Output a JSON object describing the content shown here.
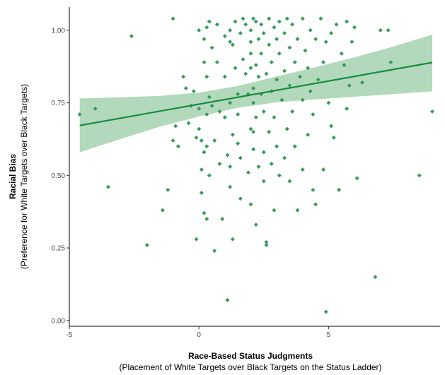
{
  "chart_data": {
    "type": "scatter",
    "title": "",
    "xlabel": "Race-Based Status Judgments",
    "xlabel_sub": "(Placement of White Targets over Black Targets on the Status Ladder)",
    "ylabel": "Racial Bias",
    "ylabel_sub": "(Preference for White Targets over Black Targets)",
    "xlim": [
      -5,
      9.3
    ],
    "ylim": [
      -0.02,
      1.08
    ],
    "x_ticks": [
      -5,
      0,
      5
    ],
    "x_tick_labels": [
      "-5",
      "0",
      "5"
    ],
    "y_ticks": [
      0,
      0.25,
      0.5,
      0.75,
      1.0
    ],
    "y_tick_labels": [
      "0.00",
      "0.25",
      "0.50",
      "0.75",
      "1.00"
    ],
    "grid": false,
    "point_color": "#3a9a5b",
    "line_color": "#1b8a3f",
    "band_color": "#7fbf8f",
    "points": [
      [
        -4.6,
        0.71
      ],
      [
        -4.0,
        0.73
      ],
      [
        -3.5,
        0.46
      ],
      [
        -2.6,
        0.98
      ],
      [
        -2.0,
        0.26
      ],
      [
        -1.4,
        0.38
      ],
      [
        -1.2,
        0.45
      ],
      [
        -1.0,
        0.62
      ],
      [
        -1.0,
        1.04
      ],
      [
        -0.9,
        0.67
      ],
      [
        -0.8,
        0.6
      ],
      [
        -0.6,
        0.84
      ],
      [
        -0.5,
        0.8
      ],
      [
        -0.4,
        0.68
      ],
      [
        -0.3,
        0.74
      ],
      [
        -0.2,
        0.79
      ],
      [
        -0.1,
        0.63
      ],
      [
        -0.1,
        0.28
      ],
      [
        0.0,
        1.0
      ],
      [
        0.0,
        0.73
      ],
      [
        0.0,
        0.66
      ],
      [
        0.1,
        0.62
      ],
      [
        0.1,
        0.52
      ],
      [
        0.1,
        0.44
      ],
      [
        0.2,
        0.97
      ],
      [
        0.2,
        0.89
      ],
      [
        0.2,
        0.58
      ],
      [
        0.2,
        0.37
      ],
      [
        0.3,
        1.01
      ],
      [
        0.3,
        0.84
      ],
      [
        0.3,
        0.71
      ],
      [
        0.3,
        0.6
      ],
      [
        0.3,
        0.35
      ],
      [
        0.4,
        1.03
      ],
      [
        0.4,
        0.77
      ],
      [
        0.4,
        0.5
      ],
      [
        0.5,
        0.94
      ],
      [
        0.5,
        0.74
      ],
      [
        0.6,
        0.62
      ],
      [
        0.6,
        0.24
      ],
      [
        0.7,
        1.02
      ],
      [
        0.7,
        0.89
      ],
      [
        0.8,
        0.72
      ],
      [
        0.8,
        0.54
      ],
      [
        0.9,
        0.35
      ],
      [
        1.0,
        0.98
      ],
      [
        1.0,
        0.84
      ],
      [
        1.0,
        0.7
      ],
      [
        1.1,
        0.57
      ],
      [
        1.1,
        0.07
      ],
      [
        1.2,
        1.0
      ],
      [
        1.2,
        0.96
      ],
      [
        1.2,
        0.75
      ],
      [
        1.2,
        0.53
      ],
      [
        1.2,
        0.46
      ],
      [
        1.3,
        0.95
      ],
      [
        1.3,
        0.64
      ],
      [
        1.3,
        0.28
      ],
      [
        1.4,
        1.03
      ],
      [
        1.4,
        0.87
      ],
      [
        1.5,
        0.78
      ],
      [
        1.5,
        0.71
      ],
      [
        1.5,
        0.61
      ],
      [
        1.6,
        0.99
      ],
      [
        1.6,
        0.56
      ],
      [
        1.6,
        0.42
      ],
      [
        1.7,
        1.04
      ],
      [
        1.7,
        0.9
      ],
      [
        1.8,
        1.02
      ],
      [
        1.8,
        0.85
      ],
      [
        1.9,
        0.78
      ],
      [
        1.9,
        0.51
      ],
      [
        2.0,
        1.0
      ],
      [
        2.0,
        0.96
      ],
      [
        2.0,
        0.92
      ],
      [
        2.0,
        0.87
      ],
      [
        2.0,
        0.66
      ],
      [
        2.0,
        0.4
      ],
      [
        2.1,
        1.04
      ],
      [
        2.1,
        0.8
      ],
      [
        2.1,
        0.75
      ],
      [
        2.1,
        0.65
      ],
      [
        2.1,
        0.59
      ],
      [
        2.2,
        1.03
      ],
      [
        2.2,
        0.88
      ],
      [
        2.2,
        0.7
      ],
      [
        2.2,
        0.33
      ],
      [
        2.3,
        0.97
      ],
      [
        2.3,
        0.84
      ],
      [
        2.3,
        0.53
      ],
      [
        2.4,
        1.02
      ],
      [
        2.4,
        0.92
      ],
      [
        2.4,
        0.78
      ],
      [
        2.5,
        0.99
      ],
      [
        2.5,
        0.72
      ],
      [
        2.5,
        0.58
      ],
      [
        2.5,
        0.48
      ],
      [
        2.6,
        0.85
      ],
      [
        2.6,
        0.27
      ],
      [
        2.6,
        0.26
      ],
      [
        2.7,
        1.04
      ],
      [
        2.7,
        0.95
      ],
      [
        2.7,
        0.65
      ],
      [
        2.8,
        0.89
      ],
      [
        2.8,
        0.79
      ],
      [
        2.8,
        0.54
      ],
      [
        2.9,
        1.01
      ],
      [
        2.9,
        0.7
      ],
      [
        2.9,
        0.38
      ],
      [
        3.0,
        0.97
      ],
      [
        3.0,
        0.83
      ],
      [
        3.0,
        0.6
      ],
      [
        3.1,
        1.03
      ],
      [
        3.1,
        0.92
      ],
      [
        3.1,
        0.5
      ],
      [
        3.2,
        0.76
      ],
      [
        3.3,
        0.99
      ],
      [
        3.3,
        0.86
      ],
      [
        3.3,
        0.56
      ],
      [
        3.4,
        1.04
      ],
      [
        3.4,
        0.66
      ],
      [
        3.5,
        0.94
      ],
      [
        3.5,
        0.81
      ],
      [
        3.5,
        0.48
      ],
      [
        3.6,
        1.02
      ],
      [
        3.6,
        0.72
      ],
      [
        3.7,
        0.89
      ],
      [
        3.7,
        0.6
      ],
      [
        3.8,
        0.97
      ],
      [
        3.8,
        0.38
      ],
      [
        3.9,
        0.84
      ],
      [
        4.0,
        1.04
      ],
      [
        4.0,
        0.76
      ],
      [
        4.0,
        0.52
      ],
      [
        4.1,
        0.93
      ],
      [
        4.2,
        0.87
      ],
      [
        4.2,
        0.64
      ],
      [
        4.3,
        1.0
      ],
      [
        4.3,
        0.79
      ],
      [
        4.4,
        0.71
      ],
      [
        4.4,
        0.45
      ],
      [
        4.5,
        0.97
      ],
      [
        4.5,
        0.4
      ],
      [
        4.6,
        0.83
      ],
      [
        4.7,
        1.04
      ],
      [
        4.8,
        0.89
      ],
      [
        4.8,
        0.52
      ],
      [
        4.9,
        0.96
      ],
      [
        4.9,
        0.03
      ],
      [
        5.0,
        0.75
      ],
      [
        5.1,
        0.99
      ],
      [
        5.1,
        0.67
      ],
      [
        5.2,
        0.63
      ],
      [
        5.3,
        1.02
      ],
      [
        5.4,
        0.45
      ],
      [
        5.5,
        0.92
      ],
      [
        5.6,
        0.88
      ],
      [
        5.7,
        1.03
      ],
      [
        5.7,
        0.73
      ],
      [
        5.8,
        0.81
      ],
      [
        5.9,
        0.96
      ],
      [
        6.0,
        1.01
      ],
      [
        6.1,
        0.49
      ],
      [
        6.3,
        0.82
      ],
      [
        6.8,
        0.15
      ],
      [
        7.0,
        1.0
      ],
      [
        7.3,
        1.0
      ],
      [
        7.4,
        0.89
      ],
      [
        8.5,
        0.5
      ],
      [
        9.0,
        0.72
      ]
    ],
    "fit_line": {
      "x": [
        -4.6,
        9.0
      ],
      "y": [
        0.672,
        0.889
      ]
    },
    "confidence_band": {
      "x": [
        -4.6,
        -3.0,
        -1.5,
        0.0,
        1.5,
        3.0,
        4.5,
        6.0,
        7.5,
        9.0
      ],
      "upper": [
        0.765,
        0.769,
        0.774,
        0.785,
        0.808,
        0.841,
        0.873,
        0.907,
        0.944,
        0.985
      ],
      "lower": [
        0.58,
        0.626,
        0.668,
        0.703,
        0.733,
        0.752,
        0.762,
        0.771,
        0.78,
        0.79
      ]
    }
  }
}
